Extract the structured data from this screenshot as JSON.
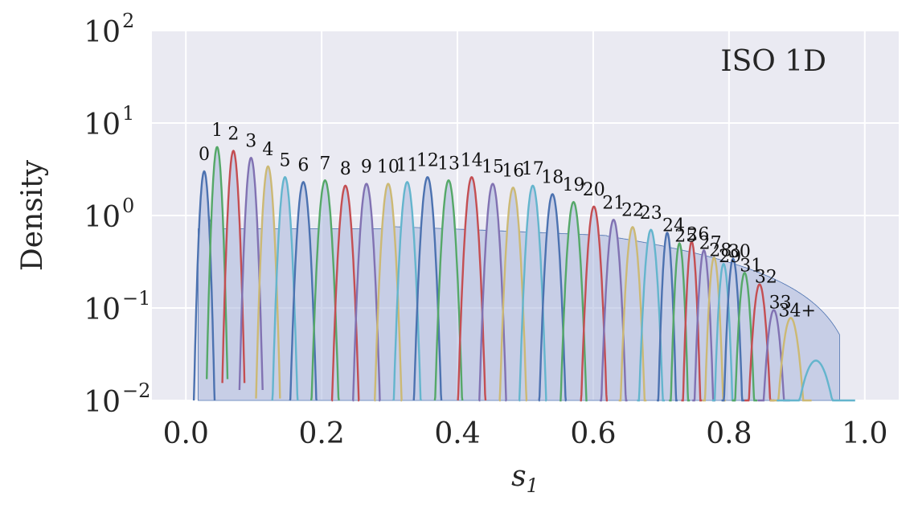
{
  "chart_data": {
    "type": "line",
    "title": "",
    "annotation": "ISO 1D",
    "xlabel": "s",
    "xlabel_subscript": "1",
    "ylabel": "Density",
    "xlim": [
      -0.05,
      1.05
    ],
    "ylim": [
      0.01,
      100
    ],
    "yscale": "log",
    "grid": true,
    "legend": "none",
    "x_ticks": [
      "0.0",
      "0.2",
      "0.4",
      "0.6",
      "0.8",
      "1.0"
    ],
    "x_tick_values": [
      0.0,
      0.2,
      0.4,
      0.6,
      0.8,
      1.0
    ],
    "y_ticks": [
      {
        "base": "10",
        "exp": "−2",
        "value": 0.01
      },
      {
        "base": "10",
        "exp": "−1",
        "value": 0.1
      },
      {
        "base": "10",
        "exp": "0",
        "value": 1
      },
      {
        "base": "10",
        "exp": "1",
        "value": 10
      },
      {
        "base": "10",
        "exp": "2",
        "value": 100
      }
    ],
    "colors": [
      "#4c72b0",
      "#55a868",
      "#c44e52",
      "#8172b2",
      "#ccb974",
      "#64b5cd"
    ],
    "fill_color": "#a9b6dc",
    "series": [
      {
        "label": "0",
        "center": 0.027,
        "peak": 3.0,
        "sigma": 0.0045
      },
      {
        "label": "1",
        "center": 0.046,
        "peak": 5.5,
        "sigma": 0.0045
      },
      {
        "label": "2",
        "center": 0.07,
        "peak": 5.0,
        "sigma": 0.0048
      },
      {
        "label": "3",
        "center": 0.096,
        "peak": 4.2,
        "sigma": 0.005
      },
      {
        "label": "4",
        "center": 0.121,
        "peak": 3.4,
        "sigma": 0.0052
      },
      {
        "label": "5",
        "center": 0.146,
        "peak": 2.6,
        "sigma": 0.0055
      },
      {
        "label": "6",
        "center": 0.173,
        "peak": 2.3,
        "sigma": 0.0058
      },
      {
        "label": "7",
        "center": 0.205,
        "peak": 2.4,
        "sigma": 0.006
      },
      {
        "label": "8",
        "center": 0.235,
        "peak": 2.1,
        "sigma": 0.006
      },
      {
        "label": "9",
        "center": 0.266,
        "peak": 2.2,
        "sigma": 0.006
      },
      {
        "label": "10",
        "center": 0.298,
        "peak": 2.2,
        "sigma": 0.006
      },
      {
        "label": "11",
        "center": 0.326,
        "peak": 2.3,
        "sigma": 0.006
      },
      {
        "label": "12",
        "center": 0.356,
        "peak": 2.6,
        "sigma": 0.006
      },
      {
        "label": "13",
        "center": 0.387,
        "peak": 2.4,
        "sigma": 0.006
      },
      {
        "label": "14",
        "center": 0.421,
        "peak": 2.6,
        "sigma": 0.006
      },
      {
        "label": "15",
        "center": 0.452,
        "peak": 2.2,
        "sigma": 0.006
      },
      {
        "label": "16",
        "center": 0.482,
        "peak": 2.0,
        "sigma": 0.006
      },
      {
        "label": "17",
        "center": 0.511,
        "peak": 2.1,
        "sigma": 0.006
      },
      {
        "label": "18",
        "center": 0.54,
        "peak": 1.7,
        "sigma": 0.006
      },
      {
        "label": "19",
        "center": 0.571,
        "peak": 1.4,
        "sigma": 0.006
      },
      {
        "label": "20",
        "center": 0.601,
        "peak": 1.25,
        "sigma": 0.006
      },
      {
        "label": "21",
        "center": 0.63,
        "peak": 0.9,
        "sigma": 0.006
      },
      {
        "label": "22",
        "center": 0.658,
        "peak": 0.75,
        "sigma": 0.006
      },
      {
        "label": "23",
        "center": 0.685,
        "peak": 0.7,
        "sigma": 0.006
      },
      {
        "label": "24",
        "center": 0.709,
        "peak": 0.65,
        "sigma": 0.0045
      },
      {
        "label": "25",
        "center": 0.727,
        "peak": 0.5,
        "sigma": 0.0045
      },
      {
        "label": "26",
        "center": 0.745,
        "peak": 0.52,
        "sigma": 0.0045
      },
      {
        "label": "27",
        "center": 0.763,
        "peak": 0.42,
        "sigma": 0.005
      },
      {
        "label": "28",
        "center": 0.778,
        "peak": 0.35,
        "sigma": 0.005
      },
      {
        "label": "29",
        "center": 0.792,
        "peak": 0.3,
        "sigma": 0.005
      },
      {
        "label": "30",
        "center": 0.806,
        "peak": 0.34,
        "sigma": 0.005
      },
      {
        "label": "31",
        "center": 0.823,
        "peak": 0.24,
        "sigma": 0.0055
      },
      {
        "label": "32",
        "center": 0.845,
        "peak": 0.18,
        "sigma": 0.0065
      },
      {
        "label": "33",
        "center": 0.866,
        "peak": 0.095,
        "sigma": 0.007
      },
      {
        "label": "34+",
        "center": 0.891,
        "peak": 0.078,
        "sigma": 0.009
      },
      {
        "label": "",
        "center": 0.928,
        "peak": 0.027,
        "sigma": 0.017
      }
    ]
  }
}
